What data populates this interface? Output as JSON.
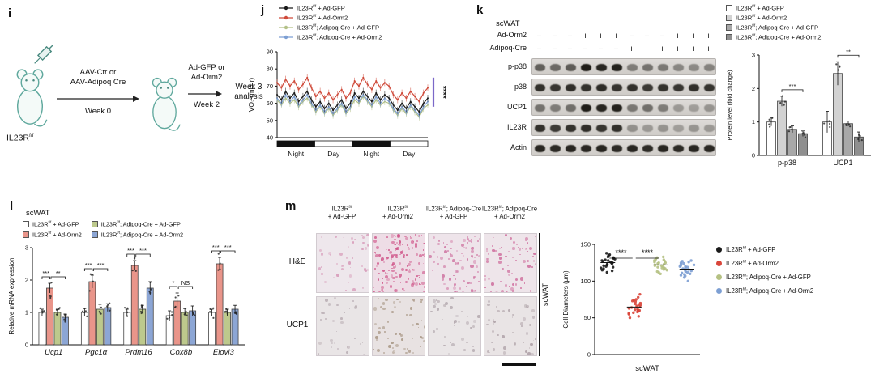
{
  "groups": [
    {
      "label": "IL23R^f/f^ + Ad-GFP",
      "line_color": "#1a1a1a",
      "fill": "#ffffff",
      "k_fill": "#ffffff",
      "dot_color": "#1a1a1a"
    },
    {
      "label": "IL23R^f/f^ + Ad-Orm2",
      "line_color": "#cf4a3a",
      "fill": "#e9958a",
      "k_fill": "#d2d2d2",
      "dot_color": "#d9453a"
    },
    {
      "label": "IL23R^f/f^; Adipoq-Cre + Ad-GFP",
      "line_color": "#b3c188",
      "fill": "#bdc98c",
      "k_fill": "#a8a8a8",
      "dot_color": "#b5c183"
    },
    {
      "label": "IL23R^f/f^; Adipoq-Cre + Ad-Orm2",
      "line_color": "#7d9fd3",
      "fill": "#8ca6d5",
      "k_fill": "#8f8f8f",
      "dot_color": "#7d9fd3"
    }
  ],
  "panel_i": {
    "label": "i",
    "mouse_label": "IL23R^f/f^",
    "step1_line1": "AAV-Ctr or",
    "step1_line2": "AAV-Adipoq Cre",
    "step1_week": "Week 0",
    "step2_line1": "Ad-GFP or",
    "step2_line2": "Ad-Orm2",
    "step2_week": "Week 2",
    "end_line1": "Week 3",
    "end_line2": "analysis"
  },
  "panel_j": {
    "label": "j",
    "sig_color": "#7b68c8"
  },
  "panel_k": {
    "label": "k",
    "tissue": "scWAT",
    "lane_rows": [
      {
        "label": "Ad-Orm2",
        "signs": [
          "−",
          "−",
          "−",
          "+",
          "+",
          "+",
          "−",
          "−",
          "−",
          "+",
          "+",
          "+"
        ]
      },
      {
        "label": "Adipoq-Cre",
        "signs": [
          "−",
          "−",
          "−",
          "−",
          "−",
          "−",
          "+",
          "+",
          "+",
          "+",
          "+",
          "+"
        ]
      }
    ],
    "blots": [
      {
        "label": "p-p38",
        "bands": [
          0.6,
          0.55,
          0.62,
          0.95,
          0.9,
          0.93,
          0.45,
          0.5,
          0.47,
          0.4,
          0.38,
          0.42
        ]
      },
      {
        "label": "p38",
        "bands": [
          0.85,
          0.82,
          0.86,
          0.84,
          0.87,
          0.83,
          0.85,
          0.8,
          0.84,
          0.82,
          0.86,
          0.83
        ]
      },
      {
        "label": "UCP1",
        "bands": [
          0.5,
          0.45,
          0.52,
          0.95,
          0.9,
          0.92,
          0.48,
          0.52,
          0.45,
          0.3,
          0.28,
          0.33
        ]
      },
      {
        "label": "IL23R",
        "bands": [
          0.85,
          0.8,
          0.84,
          0.86,
          0.82,
          0.85,
          0.35,
          0.3,
          0.33,
          0.28,
          0.32,
          0.3
        ]
      },
      {
        "label": "Actin",
        "bands": [
          0.9,
          0.88,
          0.9,
          0.89,
          0.91,
          0.88,
          0.9,
          0.87,
          0.9,
          0.88,
          0.9,
          0.89
        ]
      }
    ]
  },
  "panel_l": {
    "label": "l",
    "tissue": "scWAT"
  },
  "panel_m": {
    "label": "m",
    "row_labels": [
      "H&E",
      "UCP1"
    ],
    "col_headers": [
      {
        "line1": "IL23R^f/f^",
        "line2": "+ Ad-GFP"
      },
      {
        "line1": "IL23R^f/f^",
        "line2": "+ Ad-Orm2"
      },
      {
        "line1": "IL23R^f/f^; Adipoq-Cre",
        "line2": "+ Ad-GFP"
      },
      {
        "line1": "IL23R^f/f^; Adipoq-Cre",
        "line2": "+ Ad-Orm2"
      }
    ],
    "side_label": "scWAT",
    "histology": [
      [
        {
          "base": "#eee7ec",
          "dots": "#d79ab8",
          "n": 45,
          "seed": 1
        },
        {
          "base": "#eedde6",
          "dots": "#cf5488",
          "n": 150,
          "seed": 2
        },
        {
          "base": "#eee4ea",
          "dots": "#d078a4",
          "n": 90,
          "seed": 3
        },
        {
          "base": "#eee5ea",
          "dots": "#cf6f9e",
          "n": 75,
          "seed": 4
        }
      ],
      [
        {
          "base": "#e9e5e6",
          "dots": "#b9adb3",
          "n": 35,
          "seed": 5
        },
        {
          "base": "#e8e2e2",
          "dots": "#a89684",
          "n": 60,
          "seed": 6
        },
        {
          "base": "#eae6e7",
          "dots": "#b3a8ae",
          "n": 40,
          "seed": 7
        },
        {
          "base": "#e9e4e5",
          "dots": "#ada0a6",
          "n": 45,
          "seed": 8
        }
      ]
    ]
  },
  "chart_data": [
    {
      "id": "vo2",
      "panel": "j",
      "type": "line",
      "ylabel": "VO₂ (ml/hr)",
      "ylim": [
        40,
        90
      ],
      "yticks": [
        40,
        50,
        60,
        70,
        80,
        90
      ],
      "phases": [
        "Night",
        "Day",
        "Night",
        "Day"
      ],
      "significance": "****",
      "series": [
        {
          "name": "IL23R^f/f^ + Ad-GFP",
          "values": [
            65,
            62,
            67,
            63,
            66,
            61,
            64,
            67,
            62,
            58,
            61,
            57,
            60,
            56,
            59,
            62,
            57,
            60,
            66,
            63,
            67,
            64,
            61,
            66,
            62,
            65,
            63,
            59,
            56,
            60,
            57,
            61,
            58,
            55,
            60,
            63
          ]
        },
        {
          "name": "IL23R^f/f^ + Ad-Orm2",
          "values": [
            72,
            69,
            74,
            70,
            73,
            68,
            71,
            75,
            69,
            64,
            67,
            63,
            66,
            62,
            65,
            68,
            63,
            66,
            73,
            70,
            75,
            71,
            68,
            73,
            69,
            72,
            70,
            65,
            62,
            66,
            63,
            67,
            64,
            61,
            66,
            69
          ]
        },
        {
          "name": "IL23R^f/f^; Adipoq-Cre + Ad-GFP",
          "values": [
            62,
            59,
            63,
            60,
            62,
            58,
            61,
            63,
            59,
            55,
            58,
            54,
            57,
            53,
            56,
            59,
            54,
            57,
            62,
            60,
            64,
            61,
            58,
            62,
            59,
            61,
            60,
            56,
            53,
            57,
            54,
            58,
            55,
            52,
            57,
            59
          ]
        },
        {
          "name": "IL23R^f/f^; Adipoq-Cre + Ad-Orm2",
          "values": [
            63,
            60,
            65,
            61,
            64,
            59,
            62,
            65,
            60,
            56,
            59,
            55,
            58,
            54,
            57,
            60,
            55,
            58,
            64,
            61,
            65,
            62,
            59,
            64,
            60,
            63,
            61,
            57,
            54,
            58,
            55,
            59,
            56,
            53,
            58,
            61
          ]
        }
      ]
    },
    {
      "id": "protein",
      "panel": "k",
      "type": "bar",
      "ylabel": "Protein level (fold change)",
      "ylim": [
        0,
        3
      ],
      "yticks": [
        0,
        1,
        2,
        3
      ],
      "categories": [
        "p-p38",
        "UCP1"
      ],
      "series": [
        {
          "name": "IL23R^f/f^ + Ad-GFP",
          "values": [
            1.0,
            1.0
          ],
          "errors": [
            0.12,
            0.32
          ]
        },
        {
          "name": "IL23R^f/f^ + Ad-Orm2",
          "values": [
            1.62,
            2.45
          ],
          "errors": [
            0.15,
            0.35
          ]
        },
        {
          "name": "IL23R^f/f^; Adipoq-Cre + Ad-GFP",
          "values": [
            0.78,
            0.95
          ],
          "errors": [
            0.1,
            0.08
          ]
        },
        {
          "name": "IL23R^f/f^; Adipoq-Cre + Ad-Orm2",
          "values": [
            0.65,
            0.55
          ],
          "errors": [
            0.08,
            0.15
          ]
        }
      ],
      "significance": [
        "***",
        "**"
      ]
    },
    {
      "id": "mrna",
      "panel": "l",
      "type": "bar",
      "ylabel": "Relative mRNA expression",
      "ylim": [
        0,
        3
      ],
      "yticks": [
        0,
        1,
        2,
        3
      ],
      "categories": [
        "Ucp1",
        "Pgc1α",
        "Prdm16",
        "Cox8b",
        "Elovl3"
      ],
      "series": [
        {
          "name": "IL23R^f/f^ + Ad-GFP",
          "values": [
            1.0,
            1.0,
            1.0,
            0.9,
            1.0
          ],
          "errors": [
            0.1,
            0.12,
            0.1,
            0.15,
            0.1
          ]
        },
        {
          "name": "IL23R^f/f^ + Ad-Orm2",
          "values": [
            1.75,
            1.95,
            2.45,
            1.35,
            2.5
          ],
          "errors": [
            0.15,
            0.2,
            0.15,
            0.25,
            0.2
          ]
        },
        {
          "name": "IL23R^f/f^; Adipoq-Cre + Ad-GFP",
          "values": [
            1.0,
            1.1,
            1.1,
            1.0,
            1.0
          ],
          "errors": [
            0.1,
            0.15,
            0.12,
            0.12,
            0.1
          ]
        },
        {
          "name": "IL23R^f/f^; Adipoq-Cre + Ad-Orm2",
          "values": [
            0.85,
            1.15,
            1.75,
            1.05,
            1.1
          ],
          "errors": [
            0.1,
            0.12,
            0.2,
            0.15,
            0.12
          ]
        }
      ],
      "significance": [
        [
          "***",
          "**"
        ],
        [
          "***",
          "***"
        ],
        [
          "***",
          "***"
        ],
        [
          "*",
          "NS"
        ],
        [
          "***",
          "***"
        ]
      ]
    },
    {
      "id": "diameters",
      "panel": "m",
      "type": "scatter",
      "ylabel": "Cell Diameters (μm)",
      "xlabel": "scWAT",
      "ylim": [
        0,
        150
      ],
      "yticks": [
        0,
        50,
        100,
        150
      ],
      "significance": [
        "****",
        "****"
      ],
      "series": [
        {
          "name": "IL23R^f/f^ + Ad-GFP",
          "values": [
            138,
            132,
            128,
            125,
            135,
            120,
            118,
            127,
            130,
            122,
            115,
            125,
            133,
            119,
            128,
            136,
            124,
            112,
            121,
            129,
            117,
            126,
            131,
            114,
            123
          ]
        },
        {
          "name": "IL23R^f/f^ + Ad-Orm2",
          "values": [
            82,
            75,
            68,
            60,
            55,
            72,
            65,
            58,
            78,
            62,
            52,
            70,
            66,
            59,
            74,
            63,
            56,
            68,
            61,
            50,
            73,
            64,
            57,
            69,
            60
          ]
        },
        {
          "name": "IL23R^f/f^; Adipoq-Cre + Ad-GFP",
          "values": [
            132,
            125,
            118,
            128,
            121,
            115,
            124,
            130,
            119,
            112,
            126,
            122,
            133,
            116,
            127,
            120,
            110,
            123,
            129,
            117,
            125,
            113,
            121,
            128,
            118
          ]
        },
        {
          "name": "IL23R^f/f^; Adipoq-Cre + Ad-Orm2",
          "values": [
            128,
            120,
            112,
            124,
            116,
            108,
            122,
            127,
            114,
            105,
            119,
            125,
            110,
            121,
            115,
            100,
            117,
            123,
            109,
            118,
            126,
            107,
            120,
            113,
            111
          ]
        }
      ]
    }
  ]
}
